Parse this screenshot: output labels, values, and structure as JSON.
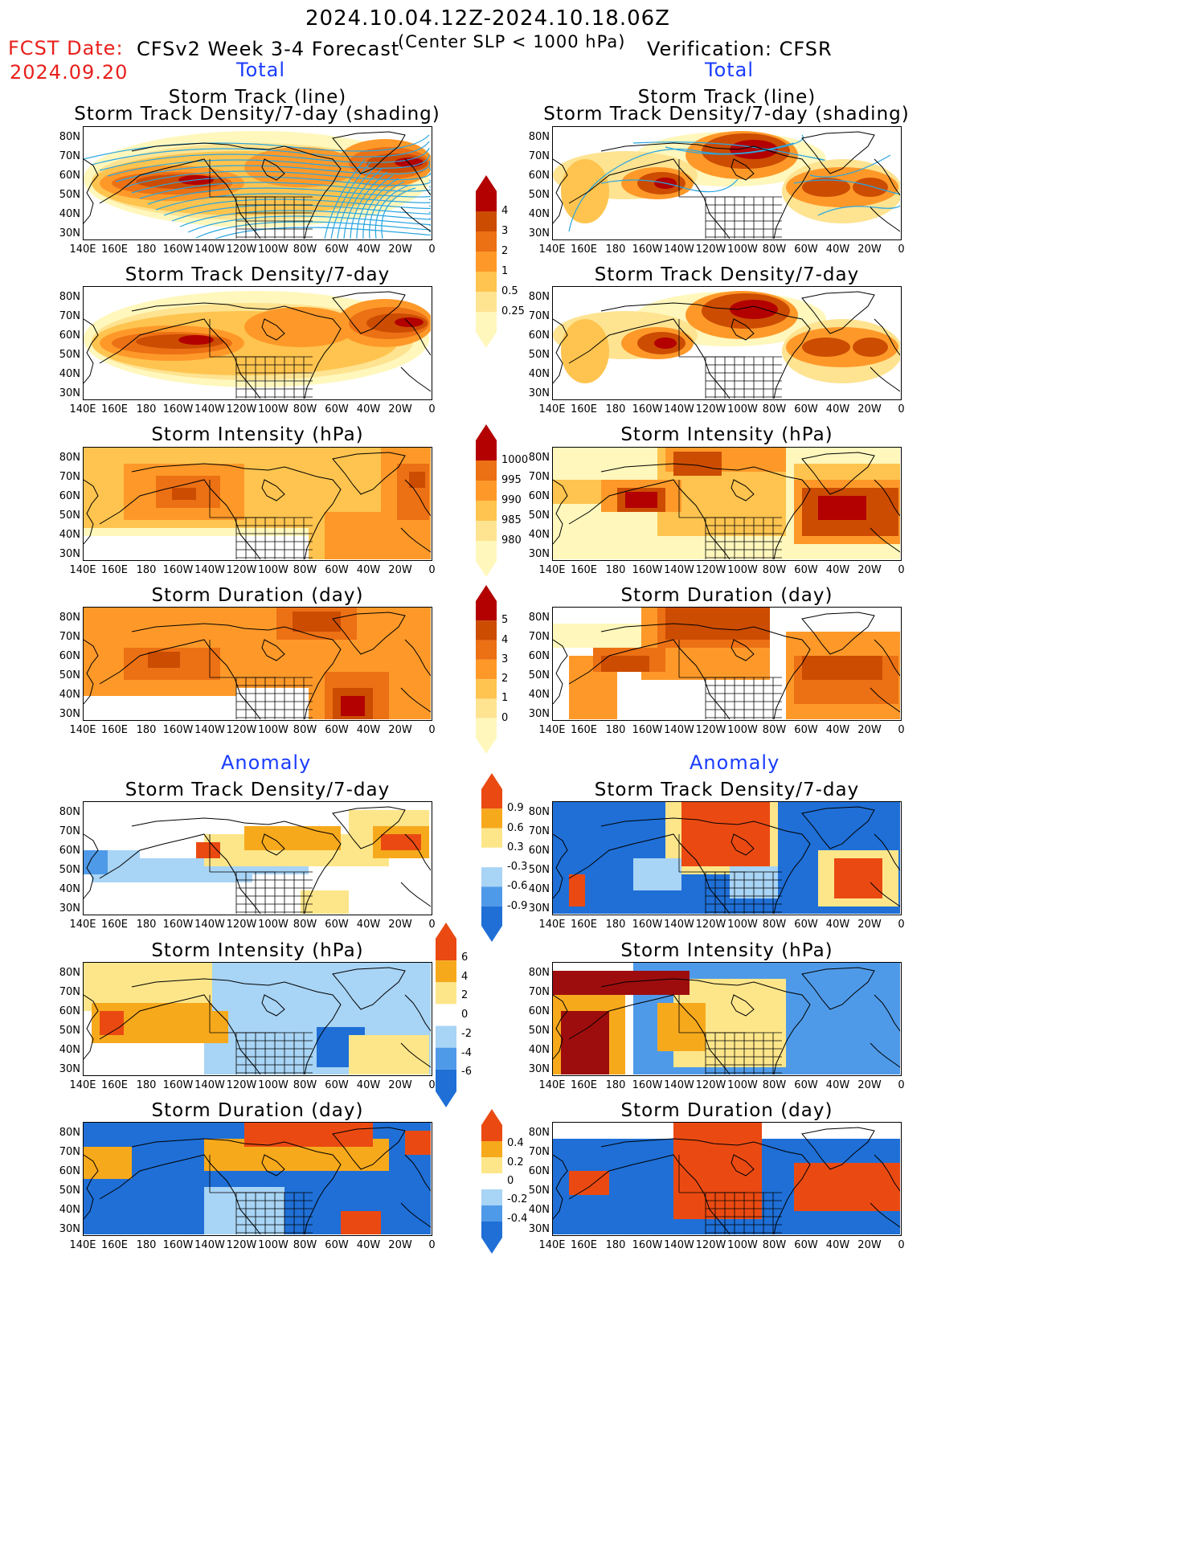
{
  "header": {
    "period": "2024.10.04.12Z-2024.10.18.06Z",
    "fcst_label": "FCST Date:",
    "fcst_date": "2024.09.20",
    "left_title": "CFSv2 Week 3-4 Forecast",
    "criterion": "(Center SLP < 1000 hPa)",
    "right_title": "Verification: CFSR"
  },
  "sections": {
    "total": "Total",
    "anomaly": "Anomaly"
  },
  "panel_titles": {
    "track_line": "Storm Track (line)",
    "track_shading": "Storm Track Density/7-day (shading)",
    "density": "Storm Track Density/7-day",
    "intensity": "Storm Intensity (hPa)",
    "duration": "Storm Duration (day)"
  },
  "axes": {
    "lat_labels": [
      "80N",
      "70N",
      "60N",
      "50N",
      "40N",
      "30N"
    ],
    "lon_labels": [
      "140E",
      "160E",
      "180",
      "160W",
      "140W",
      "120W",
      "100W",
      "80W",
      "60W",
      "40W",
      "20W",
      "0"
    ]
  },
  "colorbars": {
    "density_total": [
      "4",
      "3",
      "2",
      "1",
      "0.5",
      "0.25"
    ],
    "intensity_total": [
      "1000",
      "995",
      "990",
      "985",
      "980"
    ],
    "duration_total": [
      "5",
      "4",
      "3",
      "2",
      "1",
      "0"
    ],
    "density_anom": [
      "0.9",
      "0.6",
      "0.3",
      "-0.3",
      "-0.6",
      "-0.9"
    ],
    "intensity_anom": [
      "6",
      "4",
      "2",
      "0",
      "-2",
      "-4",
      "-6"
    ],
    "duration_anom": [
      "0.4",
      "0.2",
      "0",
      "-0.2",
      "-0.4"
    ]
  },
  "palettes": {
    "warm": [
      "#fff7bc",
      "#fee391",
      "#fec44f",
      "#fe9929",
      "#ec7014",
      "#cc4c02",
      "#b30000"
    ],
    "anomaly": [
      "#1f6fd6",
      "#4f9ae8",
      "#a8d4f5",
      "#ffffff",
      "#fde68a",
      "#f7a91c",
      "#ea4a12"
    ],
    "track_line": "#2aa6e0"
  }
}
